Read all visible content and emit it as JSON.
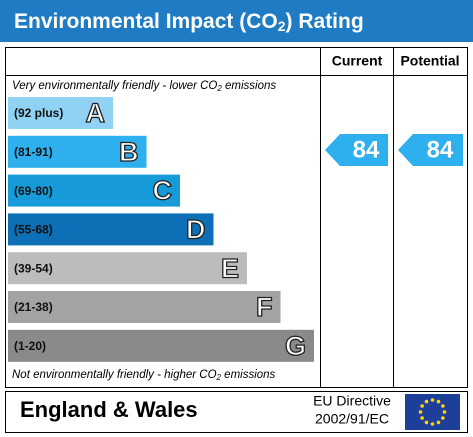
{
  "header": {
    "title": {
      "before": "Environmental Impact (CO",
      "sub": "2",
      "after": ") Rating"
    }
  },
  "columns": {
    "current": "Current",
    "potential": "Potential"
  },
  "top_note": {
    "before": "Very environmentally friendly - lower CO",
    "sub": "2",
    "after": " emissions"
  },
  "bottom_note": {
    "before": "Not environmentally friendly - higher CO",
    "sub": "2",
    "after": " emissions"
  },
  "bands": [
    {
      "range": "(92 plus)",
      "letter": "A",
      "color": "#8fd2f4"
    },
    {
      "range": "(81-91)",
      "letter": "B",
      "color": "#2eb0ee"
    },
    {
      "range": "(69-80)",
      "letter": "C",
      "color": "#169ad8"
    },
    {
      "range": "(55-68)",
      "letter": "D",
      "color": "#0d70b6"
    },
    {
      "range": "(39-54)",
      "letter": "E",
      "color": "#bcbcbc"
    },
    {
      "range": "(21-38)",
      "letter": "F",
      "color": "#a3a3a3"
    },
    {
      "range": "(1-20)",
      "letter": "G",
      "color": "#8a8a8a"
    }
  ],
  "ratings": {
    "current": 84,
    "potential": 84,
    "color": "#2eb0ee"
  },
  "footer": {
    "region": "England & Wales",
    "directive_line1": "EU Directive",
    "directive_line2": "2002/91/EC"
  }
}
